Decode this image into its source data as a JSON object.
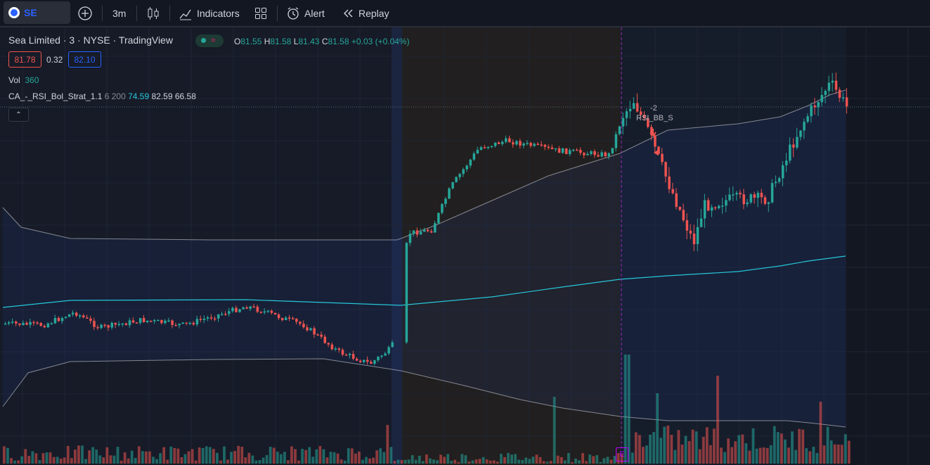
{
  "toolbar": {
    "symbol": "SE",
    "interval": "3m",
    "indicators_label": "Indicators",
    "alert_label": "Alert",
    "replay_label": "Replay"
  },
  "legend": {
    "title": "Sea Limited · 3 · NYSE · TradingView",
    "o_label": "O",
    "o_value": "81.55",
    "h_label": "H",
    "h_value": "81.58",
    "l_label": "L",
    "l_value": "81.43",
    "c_label": "C",
    "c_value": "81.58",
    "change": "+0.03 (+0.04%)",
    "bid": "81.78",
    "spread": "0.32",
    "ask": "82.10",
    "vol_label": "Vol",
    "vol_value": "360",
    "strategy_name": "CA_-_RSI_Bol_Strat_1.1",
    "strategy_params": "6 200",
    "strategy_v1": "74.59",
    "strategy_v2": "82.59",
    "strategy_v3": "66.58"
  },
  "annotations": {
    "order_label": "RSI_BB_S",
    "order_qty": "-2",
    "earnings_marker": "E"
  },
  "colors": {
    "background": "#131722",
    "up": "#26a69a",
    "down": "#ef5350",
    "accent": "#2962ff",
    "event_line": "#9c27b0"
  },
  "chart_data": {
    "type": "candlestick",
    "title": "Sea Limited · 3 · NYSE · TradingView",
    "last": {
      "open": 81.55,
      "high": 81.58,
      "low": 81.43,
      "close": 81.58
    },
    "legend_entries": [
      "Vol 360",
      "CA_-_RSI_Bol_Strat_1.1 6 200 74.59 82.59 66.58"
    ],
    "series": [
      {
        "name": "Upper band",
        "kind": "line",
        "color": "#b2b5be"
      },
      {
        "name": "Basis",
        "kind": "line",
        "color": "#26c6da"
      },
      {
        "name": "Lower band",
        "kind": "line",
        "color": "#b2b5be"
      }
    ],
    "grid": true
  }
}
